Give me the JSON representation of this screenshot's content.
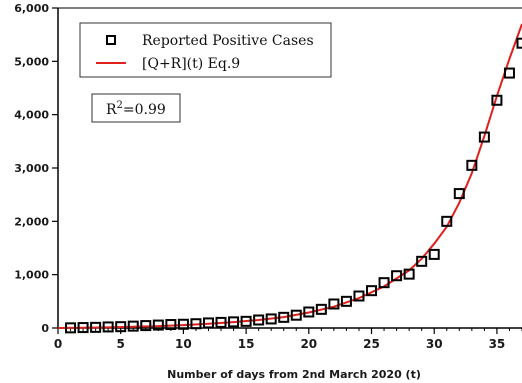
{
  "chart_data": {
    "type": "scatter",
    "xlabel": "Number of days from 2nd March 2020 (t)",
    "ylabel": "",
    "xlim": [
      0,
      37
    ],
    "ylim": [
      0,
      6000
    ],
    "xticks": [
      0,
      5,
      10,
      15,
      20,
      25,
      30,
      35
    ],
    "yticks": [
      0,
      1000,
      2000,
      3000,
      4000,
      5000,
      6000
    ],
    "ytick_labels": [
      "0",
      "1,000",
      "2,000",
      "3,000",
      "4,000",
      "5,000",
      "6,000"
    ],
    "legend_position": "top-left",
    "grid": false,
    "annotation": {
      "prefix": "R",
      "sup": "2",
      "suffix": "=0.99"
    },
    "series": [
      {
        "name": "Reported Positive Cases",
        "style": "square-markers",
        "color": "#000000",
        "x": [
          1,
          2,
          3,
          4,
          5,
          6,
          7,
          8,
          9,
          10,
          11,
          12,
          13,
          14,
          15,
          16,
          17,
          18,
          19,
          20,
          21,
          22,
          23,
          24,
          25,
          26,
          27,
          28,
          29,
          30,
          31,
          32,
          33,
          34,
          35,
          36,
          37
        ],
        "y": [
          3,
          8,
          12,
          20,
          25,
          35,
          45,
          55,
          65,
          70,
          80,
          95,
          105,
          115,
          125,
          150,
          170,
          200,
          240,
          300,
          350,
          450,
          500,
          600,
          700,
          850,
          980,
          1010,
          1250,
          1380,
          2000,
          2520,
          3050,
          3580,
          4270,
          4780,
          5340
        ]
      },
      {
        "name": "[Q+R](t) Eq.9",
        "style": "line",
        "color": "#e0201b",
        "x": [
          0,
          2,
          4,
          6,
          8,
          10,
          12,
          14,
          16,
          18,
          20,
          22,
          24,
          26,
          28,
          29,
          30,
          31,
          32,
          33,
          34,
          35,
          36,
          37
        ],
        "y": [
          0,
          5,
          12,
          22,
          36,
          55,
          80,
          110,
          150,
          205,
          290,
          400,
          560,
          780,
          1080,
          1300,
          1580,
          1900,
          2350,
          2900,
          3600,
          4350,
          5050,
          5700
        ]
      }
    ]
  }
}
